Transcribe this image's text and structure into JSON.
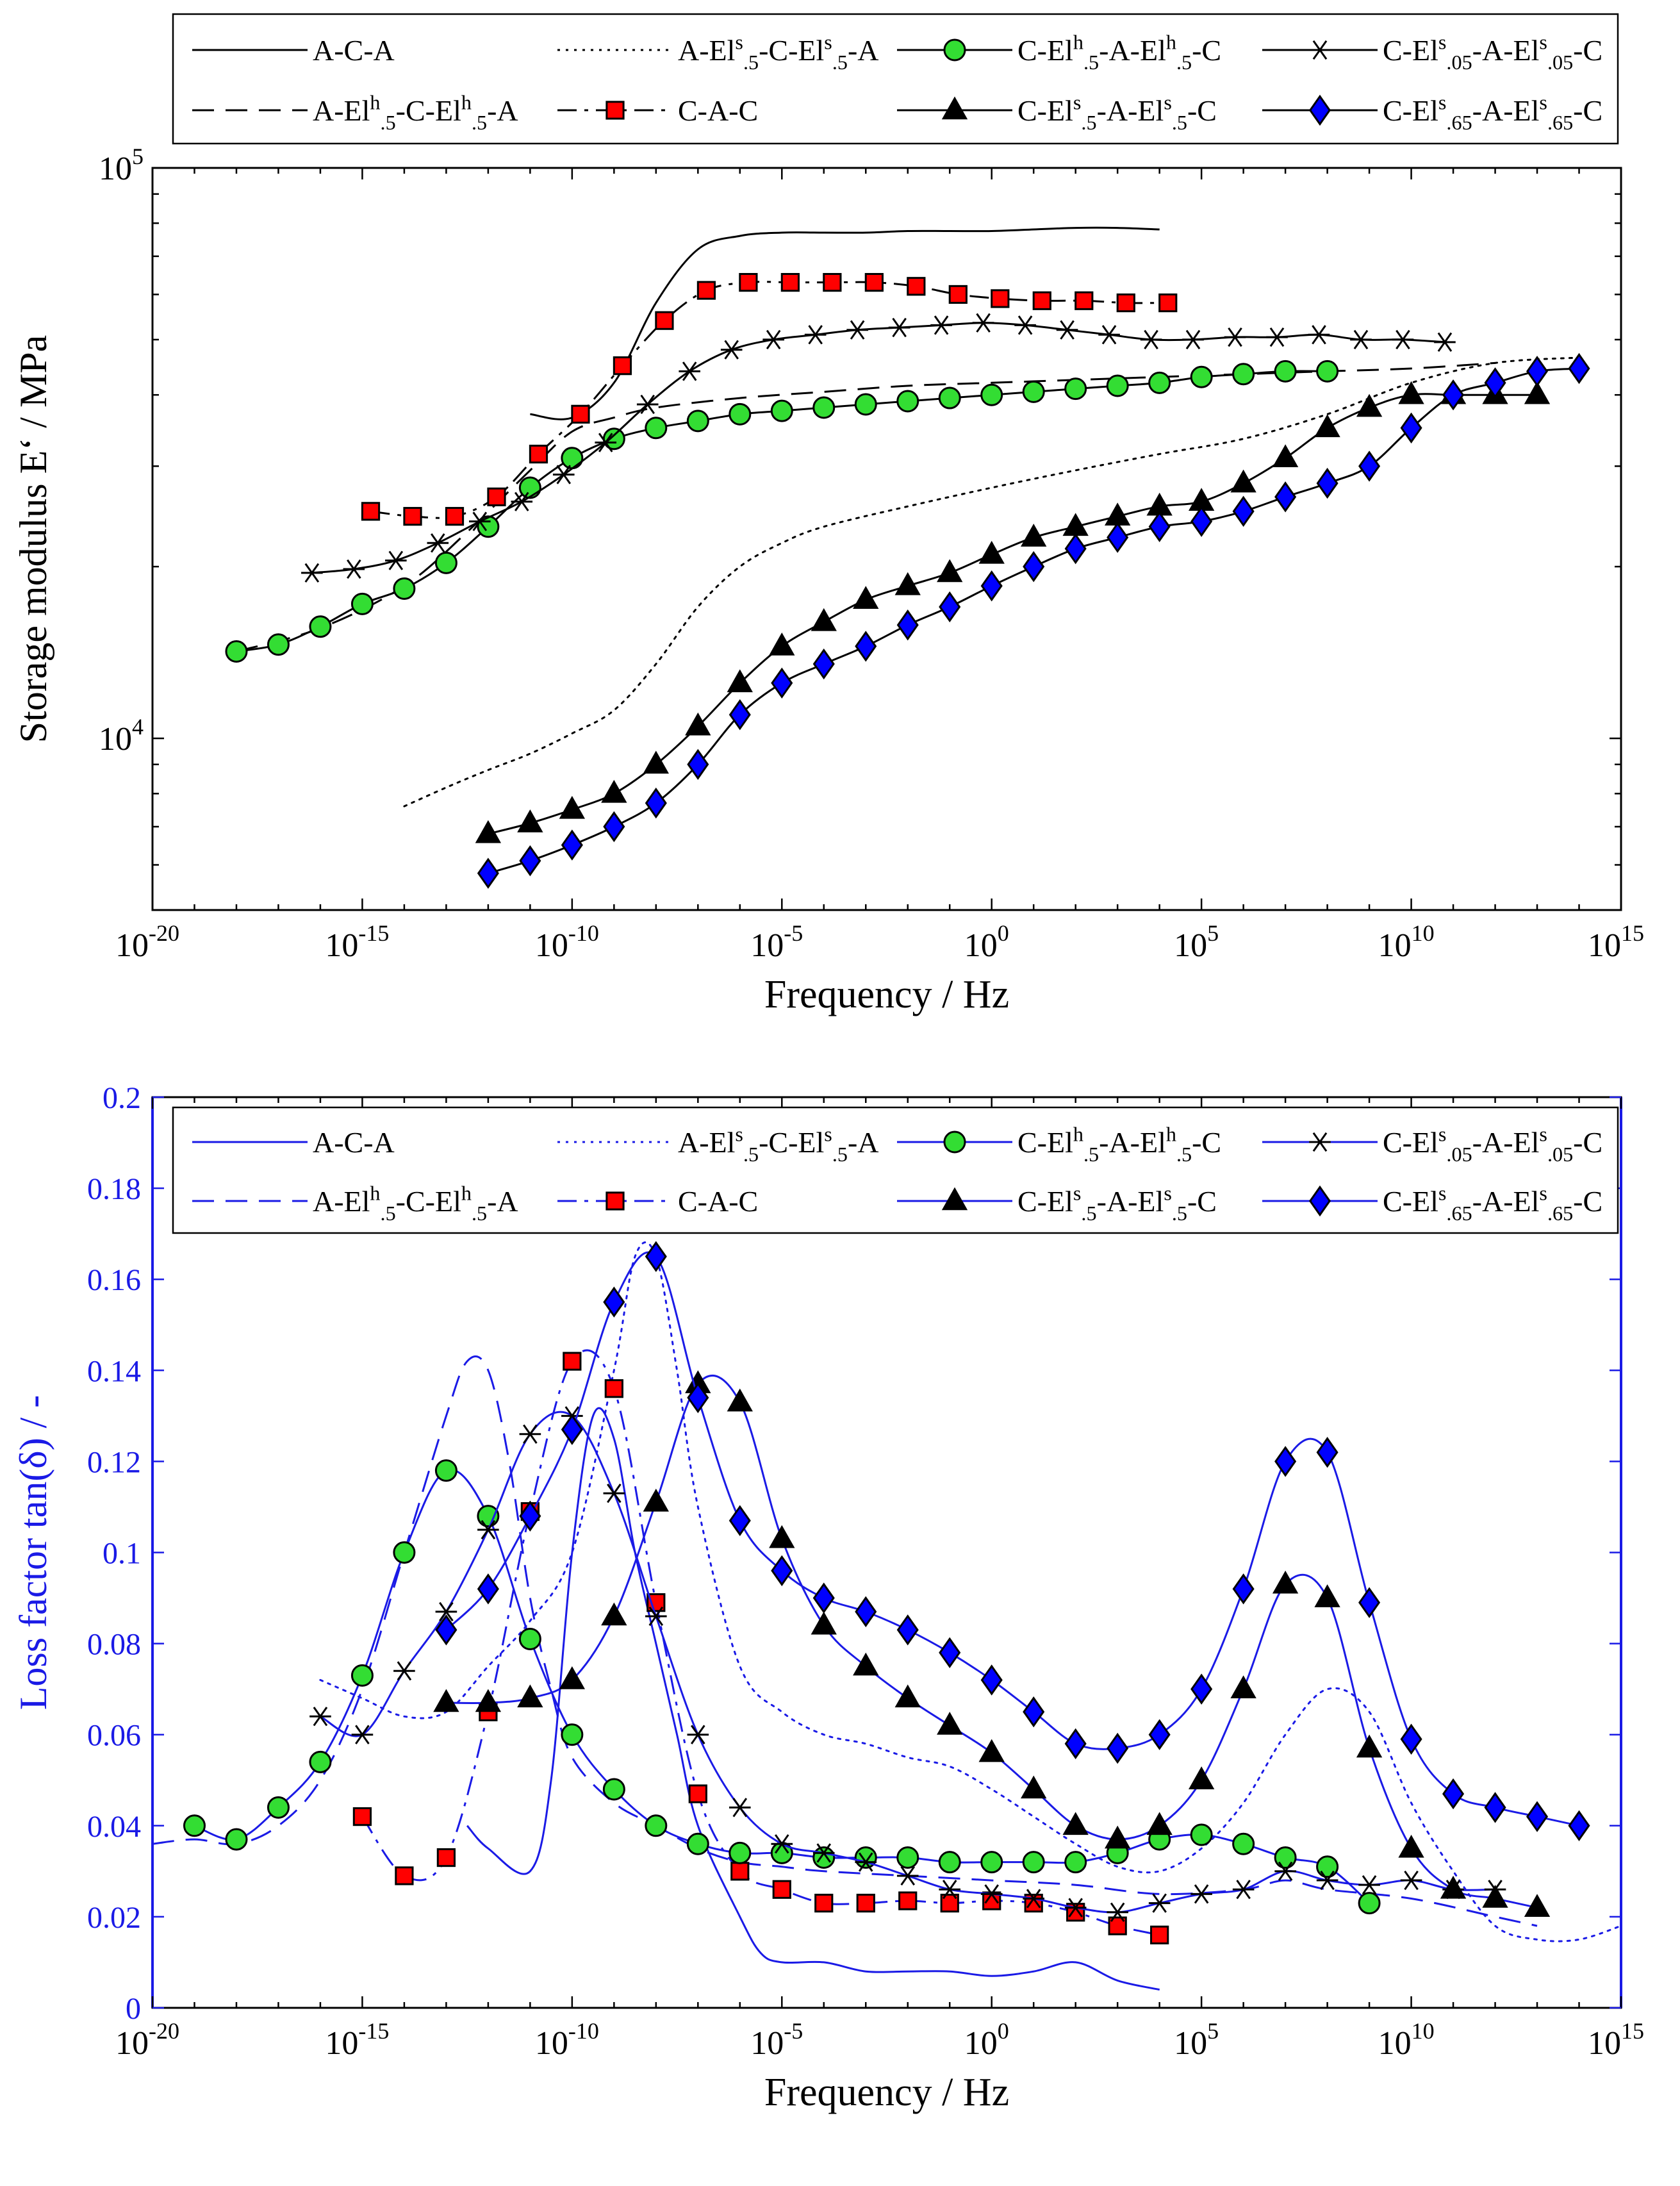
{
  "chart_data": [
    {
      "type": "line",
      "title": "",
      "xlabel": "Frequency / Hz",
      "ylabel": "Storage modulus E‘ / MPa",
      "xscale": "log",
      "yscale": "log",
      "xlim": [
        1e-20,
        1000000000000000.0
      ],
      "ylim": [
        5000,
        100000
      ],
      "xticks": [
        {
          "base": "10",
          "exp": "-20"
        },
        {
          "base": "10",
          "exp": "-15"
        },
        {
          "base": "10",
          "exp": "-10"
        },
        {
          "base": "10",
          "exp": "-5"
        },
        {
          "base": "10",
          "exp": "0"
        },
        {
          "base": "10",
          "exp": "5"
        },
        {
          "base": "10",
          "exp": "10"
        },
        {
          "base": "10",
          "exp": "15"
        }
      ],
      "yticks": [
        {
          "base": "10",
          "exp": "4"
        },
        {
          "base": "10",
          "exp": "5"
        }
      ],
      "legend_position": "top (above plot)",
      "series": [
        {
          "name": "A-C-A",
          "style": "solid",
          "marker": "none",
          "x_log10": [
            -11,
            -10,
            -9,
            -8,
            -7,
            -6,
            -5,
            -4,
            -3,
            -2,
            -1,
            0,
            1,
            2,
            3,
            4
          ],
          "y": [
            37000,
            36500,
            42000,
            58000,
            72000,
            76000,
            77000,
            77000,
            77000,
            77500,
            77500,
            77500,
            78000,
            78500,
            78500,
            78000
          ]
        },
        {
          "name": "A-El^h_.5-C-El^h_.5-A",
          "style": "dashed",
          "marker": "none",
          "x_log10": [
            -18,
            -16,
            -14,
            -12.5,
            -11,
            -10,
            -9,
            -8,
            -6,
            -4,
            -2,
            0,
            2,
            4,
            6,
            8,
            10,
            12
          ],
          "y": [
            14200,
            15600,
            18500,
            23000,
            29500,
            34500,
            36500,
            38000,
            39500,
            40500,
            41500,
            42000,
            42500,
            43000,
            43500,
            44000,
            44500,
            45500
          ]
        },
        {
          "name": "A-El^s_.5-C-El^s_.5-A",
          "style": "dotted",
          "marker": "none",
          "x_log10": [
            -14,
            -13,
            -12,
            -11,
            -10,
            -9,
            -8,
            -7,
            -6,
            -5,
            -4,
            -2,
            0,
            2,
            4,
            6,
            8,
            10,
            12,
            14
          ],
          "y": [
            7600,
            8200,
            8800,
            9400,
            10200,
            11200,
            13500,
            17000,
            20000,
            22000,
            23500,
            25500,
            27500,
            29500,
            31500,
            33500,
            37000,
            42000,
            45500,
            46500
          ]
        },
        {
          "name": "C-A-C",
          "style": "dashdot",
          "marker": "square",
          "color": "#ff0000",
          "x_log10": [
            -14.8,
            -13.8,
            -12.8,
            -11.8,
            -10.8,
            -9.8,
            -8.8,
            -7.8,
            -6.8,
            -5.8,
            -4.8,
            -3.8,
            -2.8,
            -1.8,
            -0.8,
            0.2,
            1.2,
            2.2,
            3.2,
            4.2
          ],
          "y": [
            25000,
            24500,
            24500,
            26500,
            31500,
            37000,
            45000,
            54000,
            61000,
            63000,
            63000,
            63000,
            63000,
            62000,
            60000,
            59000,
            58500,
            58500,
            58000,
            58000
          ]
        },
        {
          "name": "C-El^h_.5-A-El^h_.5-C",
          "style": "solid",
          "marker": "circle",
          "color": "#33dd33",
          "x_log10": [
            -18,
            -17,
            -16,
            -15,
            -14,
            -13,
            -12,
            -11,
            -10,
            -9,
            -8,
            -7,
            -6,
            -5,
            -4,
            -3,
            -2,
            -1,
            0,
            1,
            2,
            3,
            4,
            5,
            6,
            7,
            8
          ],
          "y": [
            14200,
            14600,
            15700,
            17200,
            18300,
            20300,
            23500,
            27500,
            31000,
            33500,
            35000,
            36000,
            37000,
            37500,
            38000,
            38500,
            39000,
            39500,
            40000,
            40500,
            41000,
            41500,
            42000,
            43000,
            43500,
            44000,
            44000
          ]
        },
        {
          "name": "C-El^s_.05-A-El^s_.05-C",
          "style": "solid",
          "marker": "star",
          "x_log10": [
            -16.2,
            -15.2,
            -14.2,
            -13.2,
            -12.2,
            -11.2,
            -10.2,
            -9.2,
            -8.2,
            -7.2,
            -6.2,
            -5.2,
            -4.2,
            -3.2,
            -2.2,
            -1.2,
            -0.2,
            0.8,
            1.8,
            2.8,
            3.8,
            4.8,
            5.8,
            6.8,
            7.8,
            8.8,
            9.8,
            10.8
          ],
          "y": [
            19500,
            19800,
            20500,
            22000,
            24000,
            26000,
            29000,
            33000,
            38500,
            44000,
            48000,
            50000,
            51000,
            52000,
            52500,
            53000,
            53500,
            53000,
            52000,
            51000,
            50000,
            50000,
            50500,
            50500,
            51000,
            50000,
            50000,
            49500
          ]
        },
        {
          "name": "C-El^s_.5-A-El^s_.5-C",
          "style": "solid",
          "marker": "triangle",
          "x_log10": [
            -12,
            -11,
            -10,
            -9,
            -8,
            -7,
            -6,
            -5,
            -4,
            -3,
            -2,
            -1,
            0,
            1,
            2,
            3,
            4,
            5,
            6,
            7,
            8,
            9,
            10,
            11,
            12,
            13
          ],
          "y": [
            6800,
            7100,
            7500,
            8000,
            9000,
            10500,
            12500,
            14500,
            16000,
            17500,
            18500,
            19500,
            21000,
            22500,
            23500,
            24500,
            25500,
            26000,
            28000,
            31000,
            35000,
            38000,
            40000,
            40000,
            40000,
            40000
          ]
        },
        {
          "name": "C-El^s_.65-A-El^s_.65-C",
          "style": "solid",
          "marker": "diamond",
          "color": "#0000ff",
          "x_log10": [
            -12,
            -11,
            -10,
            -9,
            -8,
            -7,
            -6,
            -5,
            -4,
            -3,
            -2,
            -1,
            0,
            1,
            2,
            3,
            4,
            5,
            6,
            7,
            8,
            9,
            10,
            11,
            12,
            13,
            14
          ],
          "y": [
            5800,
            6100,
            6500,
            7000,
            7700,
            9000,
            11000,
            12500,
            13500,
            14500,
            15800,
            17000,
            18500,
            20000,
            21500,
            22500,
            23500,
            24000,
            25000,
            26500,
            28000,
            30000,
            35000,
            40000,
            42000,
            44000,
            44500
          ]
        }
      ]
    },
    {
      "type": "line",
      "title": "",
      "xlabel": "Frequency  / Hz",
      "ylabel": "Loss factor tan(δ) / -",
      "xscale": "log",
      "yscale": "linear",
      "xlim": [
        1e-20,
        1000000000000000.0
      ],
      "ylim": [
        0,
        0.2
      ],
      "xticks": [
        {
          "base": "10",
          "exp": "-20"
        },
        {
          "base": "10",
          "exp": "-15"
        },
        {
          "base": "10",
          "exp": "-10"
        },
        {
          "base": "10",
          "exp": "-5"
        },
        {
          "base": "10",
          "exp": "0"
        },
        {
          "base": "10",
          "exp": "5"
        },
        {
          "base": "10",
          "exp": "10"
        },
        {
          "base": "10",
          "exp": "15"
        }
      ],
      "yticks": [
        "0",
        "0.02",
        "0.04",
        "0.06",
        "0.08",
        "0.1",
        "0.12",
        "0.14",
        "0.16",
        "0.18",
        "0.2"
      ],
      "legend_position": "top (inside plot)",
      "series": [
        {
          "name": "A-C-A",
          "style": "solid",
          "marker": "none",
          "x_log10": [
            -12.5,
            -12,
            -11,
            -10.5,
            -10,
            -9.5,
            -9,
            -8.5,
            -8,
            -7.5,
            -7,
            -6,
            -5.5,
            -5,
            -4,
            -3,
            -2,
            -1,
            0,
            1,
            2,
            3,
            4
          ],
          "y": [
            0.04,
            0.035,
            0.03,
            0.05,
            0.1,
            0.13,
            0.125,
            0.1,
            0.08,
            0.06,
            0.04,
            0.02,
            0.012,
            0.01,
            0.01,
            0.008,
            0.008,
            0.008,
            0.007,
            0.008,
            0.01,
            0.006,
            0.004
          ]
        },
        {
          "name": "A-El^h_.5-C-El^h_.5-A",
          "style": "dashed",
          "marker": "none",
          "x_log10": [
            -20,
            -19,
            -18,
            -17,
            -16,
            -15,
            -14,
            -13,
            -12.5,
            -12,
            -11.5,
            -11,
            -10.5,
            -10,
            -9,
            -8,
            -7,
            -6,
            -5,
            -4,
            -2,
            0,
            2,
            4,
            6,
            7,
            8,
            10,
            12,
            13
          ],
          "y": [
            0.036,
            0.037,
            0.036,
            0.04,
            0.05,
            0.07,
            0.1,
            0.13,
            0.142,
            0.14,
            0.12,
            0.09,
            0.07,
            0.055,
            0.045,
            0.04,
            0.035,
            0.032,
            0.031,
            0.03,
            0.029,
            0.028,
            0.027,
            0.025,
            0.026,
            0.028,
            0.026,
            0.024,
            0.02,
            0.018
          ]
        },
        {
          "name": "A-El^s_.5-C-El^s_.5-A",
          "style": "dotted",
          "marker": "none",
          "x_log10": [
            -16,
            -15,
            -14,
            -13,
            -12,
            -11,
            -10,
            -9,
            -8.5,
            -8,
            -7.5,
            -7,
            -6,
            -5,
            -4,
            -3,
            -2,
            -1,
            0,
            1,
            2,
            3,
            4,
            5,
            6,
            7,
            8,
            9,
            10,
            11,
            12,
            13,
            14,
            15
          ],
          "y": [
            0.072,
            0.068,
            0.064,
            0.065,
            0.075,
            0.085,
            0.1,
            0.14,
            0.165,
            0.165,
            0.14,
            0.11,
            0.075,
            0.065,
            0.06,
            0.058,
            0.055,
            0.053,
            0.048,
            0.042,
            0.036,
            0.031,
            0.03,
            0.035,
            0.045,
            0.06,
            0.07,
            0.065,
            0.045,
            0.03,
            0.018,
            0.015,
            0.015,
            0.018
          ]
        },
        {
          "name": "C-A-C",
          "style": "dashdot",
          "marker": "square",
          "color": "#ff0000",
          "x_log10": [
            -15,
            -14,
            -13,
            -12,
            -11,
            -10,
            -9,
            -8,
            -7,
            -6,
            -5,
            -4,
            -3,
            -2,
            -1,
            0,
            1,
            2,
            3,
            4
          ],
          "y": [
            0.042,
            0.029,
            0.033,
            0.065,
            0.109,
            0.142,
            0.136,
            0.089,
            0.047,
            0.03,
            0.026,
            0.023,
            0.023,
            0.0235,
            0.023,
            0.0235,
            0.023,
            0.021,
            0.018,
            0.016
          ]
        },
        {
          "name": "C-El^h_.5-A-El^h_.5-C",
          "style": "solid",
          "marker": "circle",
          "color": "#33dd33",
          "x_log10": [
            -19,
            -18,
            -17,
            -16,
            -15,
            -14,
            -13,
            -12,
            -11,
            -10,
            -9,
            -8,
            -7,
            -6,
            -5,
            -4,
            -3,
            -2,
            -1,
            0,
            1,
            2,
            3,
            4,
            5,
            6,
            7,
            8,
            9
          ],
          "y": [
            0.04,
            0.037,
            0.044,
            0.054,
            0.073,
            0.1,
            0.118,
            0.108,
            0.081,
            0.06,
            0.048,
            0.04,
            0.036,
            0.034,
            0.034,
            0.033,
            0.033,
            0.033,
            0.032,
            0.032,
            0.032,
            0.032,
            0.034,
            0.037,
            0.038,
            0.036,
            0.033,
            0.031,
            0.023
          ]
        },
        {
          "name": "C-El^s_.05-A-El^s_.05-C",
          "style": "solid",
          "marker": "star",
          "x_log10": [
            -16,
            -15,
            -14,
            -13,
            -12,
            -11,
            -10,
            -9,
            -8,
            -7,
            -6,
            -5,
            -4,
            -3,
            -2,
            -1,
            0,
            1,
            2,
            3,
            4,
            5,
            6,
            7,
            8,
            9,
            10,
            11,
            12
          ],
          "y": [
            0.064,
            0.06,
            0.074,
            0.087,
            0.105,
            0.126,
            0.13,
            0.113,
            0.086,
            0.06,
            0.044,
            0.036,
            0.034,
            0.032,
            0.029,
            0.026,
            0.025,
            0.024,
            0.022,
            0.021,
            0.023,
            0.025,
            0.026,
            0.03,
            0.028,
            0.027,
            0.028,
            0.026,
            0.026
          ]
        },
        {
          "name": "C-El^s_.5-A-El^s_.5-C",
          "style": "solid",
          "marker": "triangle",
          "x_log10": [
            -13,
            -12,
            -11,
            -10,
            -9,
            -8,
            -7,
            -6,
            -5,
            -4,
            -3,
            -2,
            -1,
            0,
            1,
            2,
            3,
            4,
            5,
            6,
            7,
            8,
            9,
            10,
            11,
            12,
            13
          ],
          "y": [
            0.067,
            0.067,
            0.068,
            0.072,
            0.086,
            0.111,
            0.137,
            0.133,
            0.103,
            0.084,
            0.075,
            0.068,
            0.062,
            0.056,
            0.048,
            0.04,
            0.037,
            0.04,
            0.05,
            0.07,
            0.093,
            0.09,
            0.057,
            0.035,
            0.026,
            0.024,
            0.022
          ]
        },
        {
          "name": "C-El^s_.65-A-El^s_.65-C",
          "style": "solid",
          "marker": "diamond",
          "color": "#0000ff",
          "x_log10": [
            -13,
            -12,
            -11,
            -10,
            -9,
            -8,
            -7,
            -6,
            -5,
            -4,
            -3,
            -2,
            -1,
            0,
            1,
            2,
            3,
            4,
            5,
            6,
            7,
            8,
            9,
            10,
            11,
            12,
            13,
            14
          ],
          "y": [
            0.083,
            0.092,
            0.108,
            0.127,
            0.155,
            0.165,
            0.134,
            0.107,
            0.096,
            0.09,
            0.087,
            0.083,
            0.078,
            0.072,
            0.065,
            0.058,
            0.057,
            0.06,
            0.07,
            0.092,
            0.12,
            0.122,
            0.089,
            0.059,
            0.047,
            0.044,
            0.042,
            0.04
          ]
        }
      ]
    }
  ]
}
